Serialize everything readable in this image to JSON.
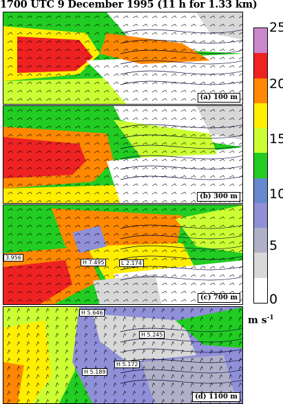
{
  "title": "1700 UTC 9 December 1995 (11 h for 1.33 km)",
  "colorbar": {
    "ticks": [
      "25",
      "20",
      "15",
      "10",
      "5",
      "0"
    ],
    "units_base": "m s",
    "units_exp": "-1",
    "segments": [
      {
        "from": 0,
        "to": 2.5,
        "color": "#ffffff"
      },
      {
        "from": 2.5,
        "to": 5,
        "color": "#d8d8d8"
      },
      {
        "from": 5,
        "to": 7.5,
        "color": "#b0b0c8"
      },
      {
        "from": 7.5,
        "to": 10,
        "color": "#9090d8"
      },
      {
        "from": 10,
        "to": 12.5,
        "color": "#6688cc"
      },
      {
        "from": 12.5,
        "to": 15,
        "color": "#22cc22"
      },
      {
        "from": 15,
        "to": 17.5,
        "color": "#ccff33"
      },
      {
        "from": 17.5,
        "to": 20,
        "color": "#ffee00"
      },
      {
        "from": 20,
        "to": 22.5,
        "color": "#ff8800"
      },
      {
        "from": 22.5,
        "to": 25,
        "color": "#ee2222"
      },
      {
        "from": 25,
        "to": 27.5,
        "color": "#cc88cc"
      }
    ]
  },
  "panels": [
    {
      "label": "(a) 100 m"
    },
    {
      "label": "(b) 300 m"
    },
    {
      "label": "(c) 700 m"
    },
    {
      "label": "(d) 1100 m"
    }
  ],
  "annotations": {
    "c": [
      "3.956",
      "H 7.495",
      "L 2.174"
    ],
    "d": [
      "H 5.646",
      "H 5.245",
      "H 5.172",
      "H 5.189"
    ]
  }
}
